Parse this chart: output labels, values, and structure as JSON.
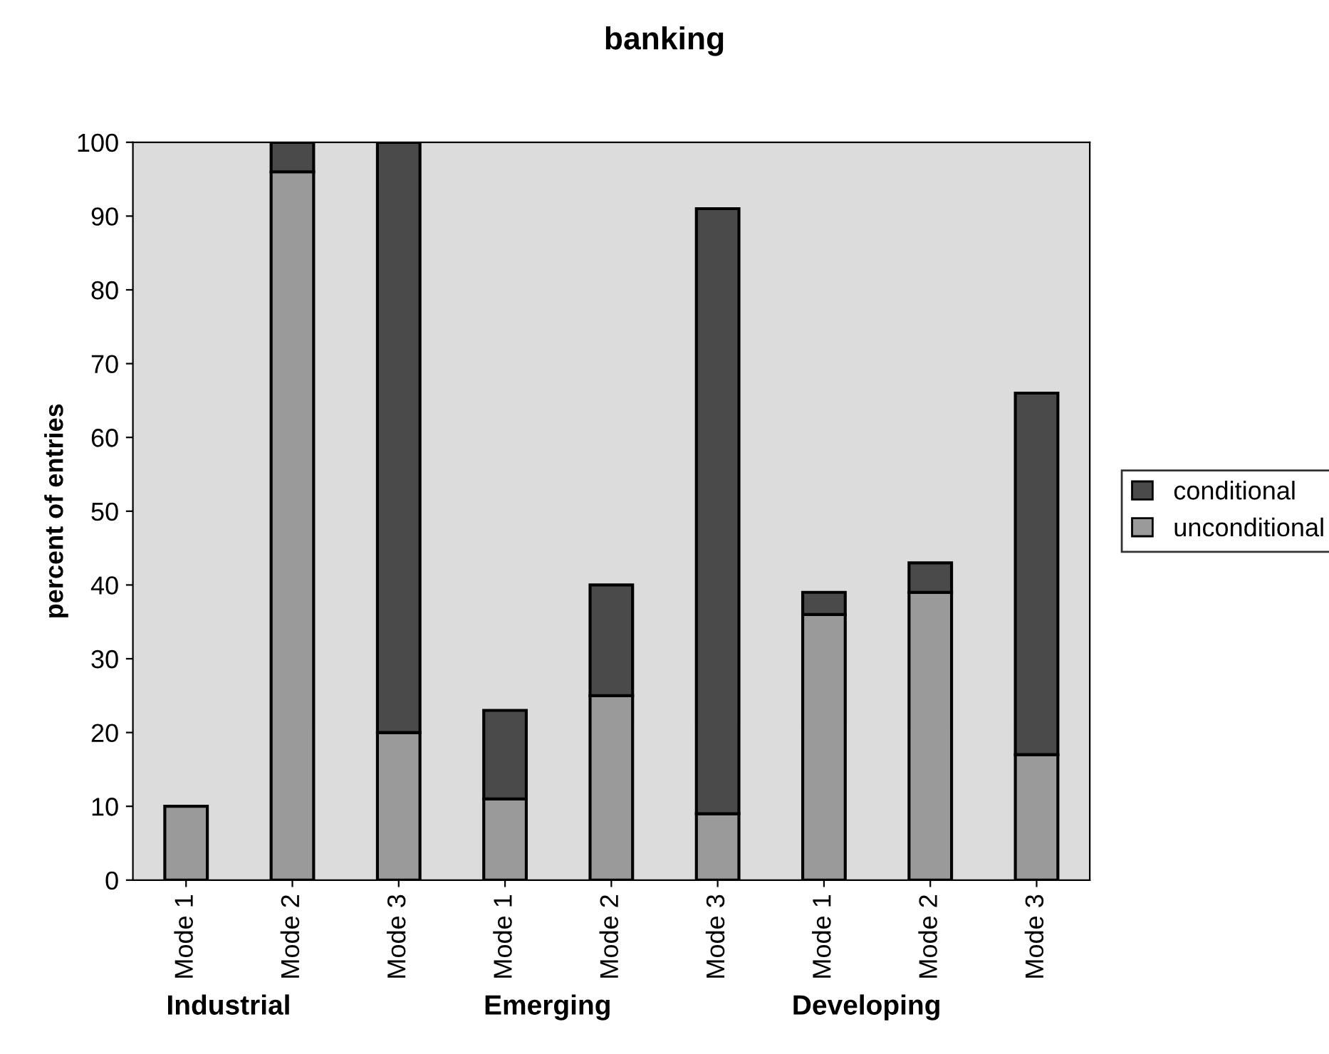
{
  "chart_data": {
    "type": "bar",
    "title": "banking",
    "ylabel": "percent of entries",
    "categories": [
      "Mode 1",
      "Mode 2",
      "Mode 3",
      "Mode 1",
      "Mode 2",
      "Mode 3",
      "Mode 1",
      "Mode 2",
      "Mode 3"
    ],
    "stacked": true,
    "series": [
      {
        "name": "unconditional",
        "color": "#9a9a9a",
        "values": [
          10,
          96,
          20,
          11,
          25,
          9,
          36,
          39,
          17
        ]
      },
      {
        "name": "conditional",
        "color": "#4a4a4a",
        "values": [
          null,
          4,
          80,
          12,
          15,
          82,
          3,
          4,
          49
        ]
      }
    ],
    "ylim": [
      0,
      100
    ],
    "yticks": [
      0,
      10,
      20,
      30,
      40,
      50,
      60,
      70,
      80,
      90,
      100
    ],
    "annotations": [
      "Industrial",
      "Emerging",
      "Developing"
    ],
    "legend": "right",
    "grid": false
  }
}
